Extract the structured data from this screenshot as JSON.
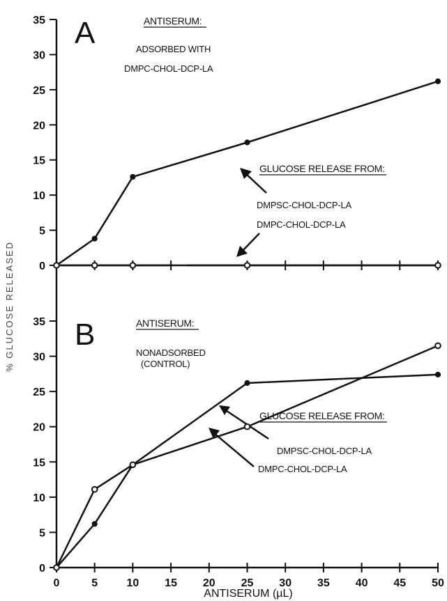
{
  "chart_data": [
    {
      "type": "line",
      "panel_label": "A",
      "heading": "ANTISERUM:",
      "condition_lines": [
        "ADSORBED WITH",
        "DMPC-CHOL-DCP-LA"
      ],
      "annotation_title": "GLUCOSE RELEASE FROM:",
      "ylim": [
        0,
        35
      ],
      "yticks": [
        "0",
        "5",
        "10",
        "15",
        "20",
        "25",
        "30",
        "35"
      ],
      "series": [
        {
          "name": "DMPSC-CHOL-DCP-LA",
          "marker": "filled",
          "x": [
            0,
            5,
            10,
            25,
            50
          ],
          "y": [
            0,
            3.8,
            12.6,
            17.5,
            26.2
          ]
        },
        {
          "name": "DMPC-CHOL-DCP-LA",
          "marker": "open",
          "x": [
            0,
            5,
            10,
            25,
            50
          ],
          "y": [
            0,
            0,
            0,
            0,
            0
          ]
        }
      ]
    },
    {
      "type": "line",
      "panel_label": "B",
      "heading": "ANTISERUM:",
      "condition_lines": [
        "NONADSORBED",
        "(CONTROL)"
      ],
      "annotation_title": "GLUCOSE RELEASE FROM:",
      "ylim": [
        0,
        35
      ],
      "yticks": [
        "0",
        "5",
        "10",
        "15",
        "20",
        "25",
        "30",
        "35"
      ],
      "series": [
        {
          "name": "DMPSC-CHOL-DCP-LA",
          "marker": "filled",
          "x": [
            0,
            5,
            10,
            25,
            50
          ],
          "y": [
            0,
            6.2,
            14.6,
            26.2,
            27.4
          ]
        },
        {
          "name": "DMPC-CHOL-DCP-LA",
          "marker": "open",
          "x": [
            0,
            5,
            10,
            25,
            50
          ],
          "y": [
            0,
            11.1,
            14.6,
            20.0,
            31.5
          ]
        }
      ]
    }
  ],
  "x_axis": {
    "label": "ANTISERUM (µL)",
    "ticks": [
      "0",
      "5",
      "10",
      "15",
      "20",
      "25",
      "30",
      "35",
      "40",
      "45",
      "50"
    ],
    "xlim": [
      0,
      50
    ]
  },
  "y_axis_label": "% GLUCOSE RELEASED"
}
